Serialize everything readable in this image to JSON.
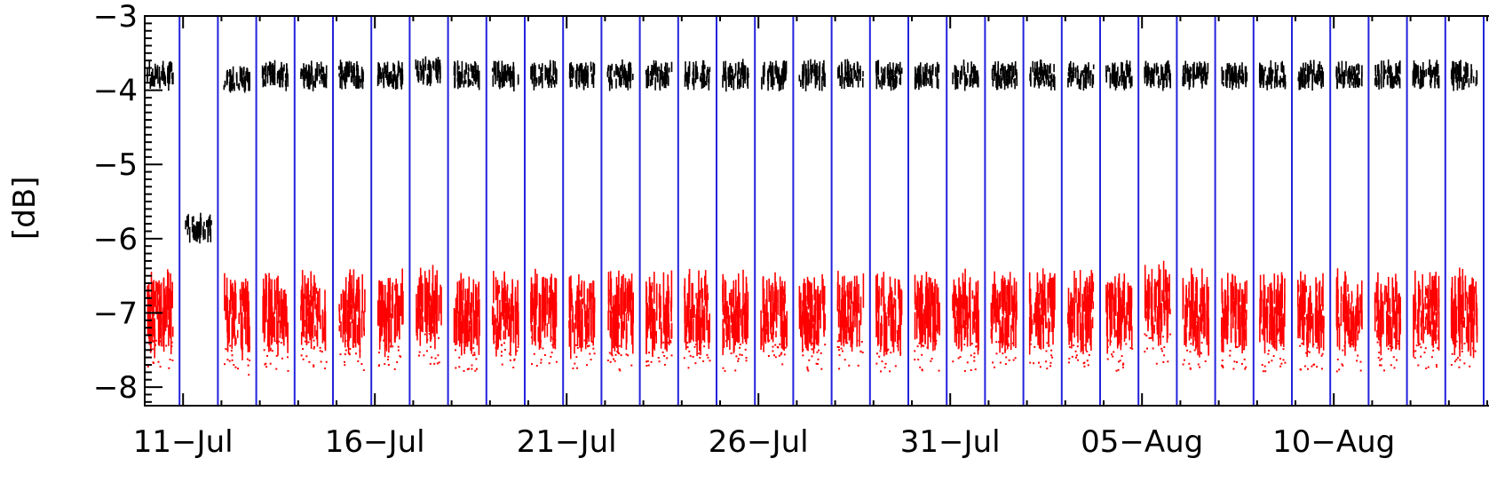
{
  "chart_data": {
    "type": "scatter",
    "title": "",
    "xlabel": "",
    "ylabel": "[dB]",
    "ylim": [
      -8.25,
      -3
    ],
    "xlim": [
      "2024-07-10",
      "2024-08-14"
    ],
    "yticks": [
      "−3",
      "−4",
      "−5",
      "−6",
      "−7",
      "−8"
    ],
    "xticks": [
      "11−Jul",
      "16−Jul",
      "21−Jul",
      "26−Jul",
      "31−Jul",
      "05−Aug",
      "10−Aug"
    ],
    "vertical_markers": [
      "2024-07-11",
      "2024-07-12",
      "2024-07-13",
      "2024-07-14",
      "2024-07-15",
      "2024-07-16",
      "2024-07-17",
      "2024-07-18",
      "2024-07-19",
      "2024-07-20",
      "2024-07-21",
      "2024-07-22",
      "2024-07-23",
      "2024-07-24",
      "2024-07-25",
      "2024-07-26",
      "2024-07-27",
      "2024-07-28",
      "2024-07-29",
      "2024-07-30",
      "2024-07-31",
      "2024-08-01",
      "2024-08-02",
      "2024-08-03",
      "2024-08-04",
      "2024-08-05",
      "2024-08-06",
      "2024-08-07",
      "2024-08-08",
      "2024-08-09",
      "2024-08-10",
      "2024-08-11",
      "2024-08-12",
      "2024-08-13",
      "2024-08-14"
    ],
    "marker_color": "#2222dd",
    "series": [
      {
        "color": "#000000",
        "x": [
          "2024-07-10",
          "2024-07-12",
          "2024-07-13",
          "2024-07-14",
          "2024-07-15",
          "2024-07-16",
          "2024-07-17",
          "2024-07-18",
          "2024-07-19",
          "2024-07-20",
          "2024-07-21",
          "2024-07-22",
          "2024-07-23",
          "2024-07-24",
          "2024-07-25",
          "2024-07-26",
          "2024-07-27",
          "2024-07-28",
          "2024-07-29",
          "2024-07-30",
          "2024-07-31",
          "2024-08-01",
          "2024-08-02",
          "2024-08-03",
          "2024-08-04",
          "2024-08-05",
          "2024-08-06",
          "2024-08-07",
          "2024-08-08",
          "2024-08-09",
          "2024-08-10",
          "2024-08-11",
          "2024-08-12",
          "2024-08-13"
        ],
        "y": [
          -3.8,
          -3.85,
          -3.8,
          -3.8,
          -3.8,
          -3.8,
          -3.75,
          -3.8,
          -3.8,
          -3.8,
          -3.8,
          -3.8,
          -3.8,
          -3.8,
          -3.8,
          -3.8,
          -3.8,
          -3.8,
          -3.8,
          -3.8,
          -3.8,
          -3.8,
          -3.8,
          -3.8,
          -3.8,
          -3.8,
          -3.8,
          -3.8,
          -3.8,
          -3.8,
          -3.8,
          -3.8,
          -3.8,
          -3.8
        ]
      },
      {
        "color": "#000000",
        "x": [
          "2024-07-11"
        ],
        "y": [
          -5.85
        ]
      },
      {
        "color": "#ff0000",
        "x": [
          "2024-07-10",
          "2024-07-12",
          "2024-07-13",
          "2024-07-14",
          "2024-07-15",
          "2024-07-16",
          "2024-07-17",
          "2024-07-18",
          "2024-07-19",
          "2024-07-20",
          "2024-07-21",
          "2024-07-22",
          "2024-07-23",
          "2024-07-24",
          "2024-07-25",
          "2024-07-26",
          "2024-07-27",
          "2024-07-28",
          "2024-07-29",
          "2024-07-30",
          "2024-07-31",
          "2024-08-01",
          "2024-08-02",
          "2024-08-03",
          "2024-08-04",
          "2024-08-05",
          "2024-08-06",
          "2024-08-07",
          "2024-08-08",
          "2024-08-09",
          "2024-08-10",
          "2024-08-11",
          "2024-08-12",
          "2024-08-13"
        ],
        "y": [
          -7.0,
          -7.05,
          -7.0,
          -7.0,
          -7.0,
          -7.0,
          -6.9,
          -7.0,
          -7.0,
          -6.95,
          -7.0,
          -7.0,
          -7.0,
          -7.0,
          -7.0,
          -7.0,
          -7.0,
          -7.0,
          -7.0,
          -7.0,
          -7.0,
          -7.0,
          -7.0,
          -7.0,
          -7.0,
          -6.9,
          -7.0,
          -7.0,
          -7.0,
          -7.0,
          -7.0,
          -7.0,
          -7.0,
          -7.0
        ]
      }
    ]
  }
}
